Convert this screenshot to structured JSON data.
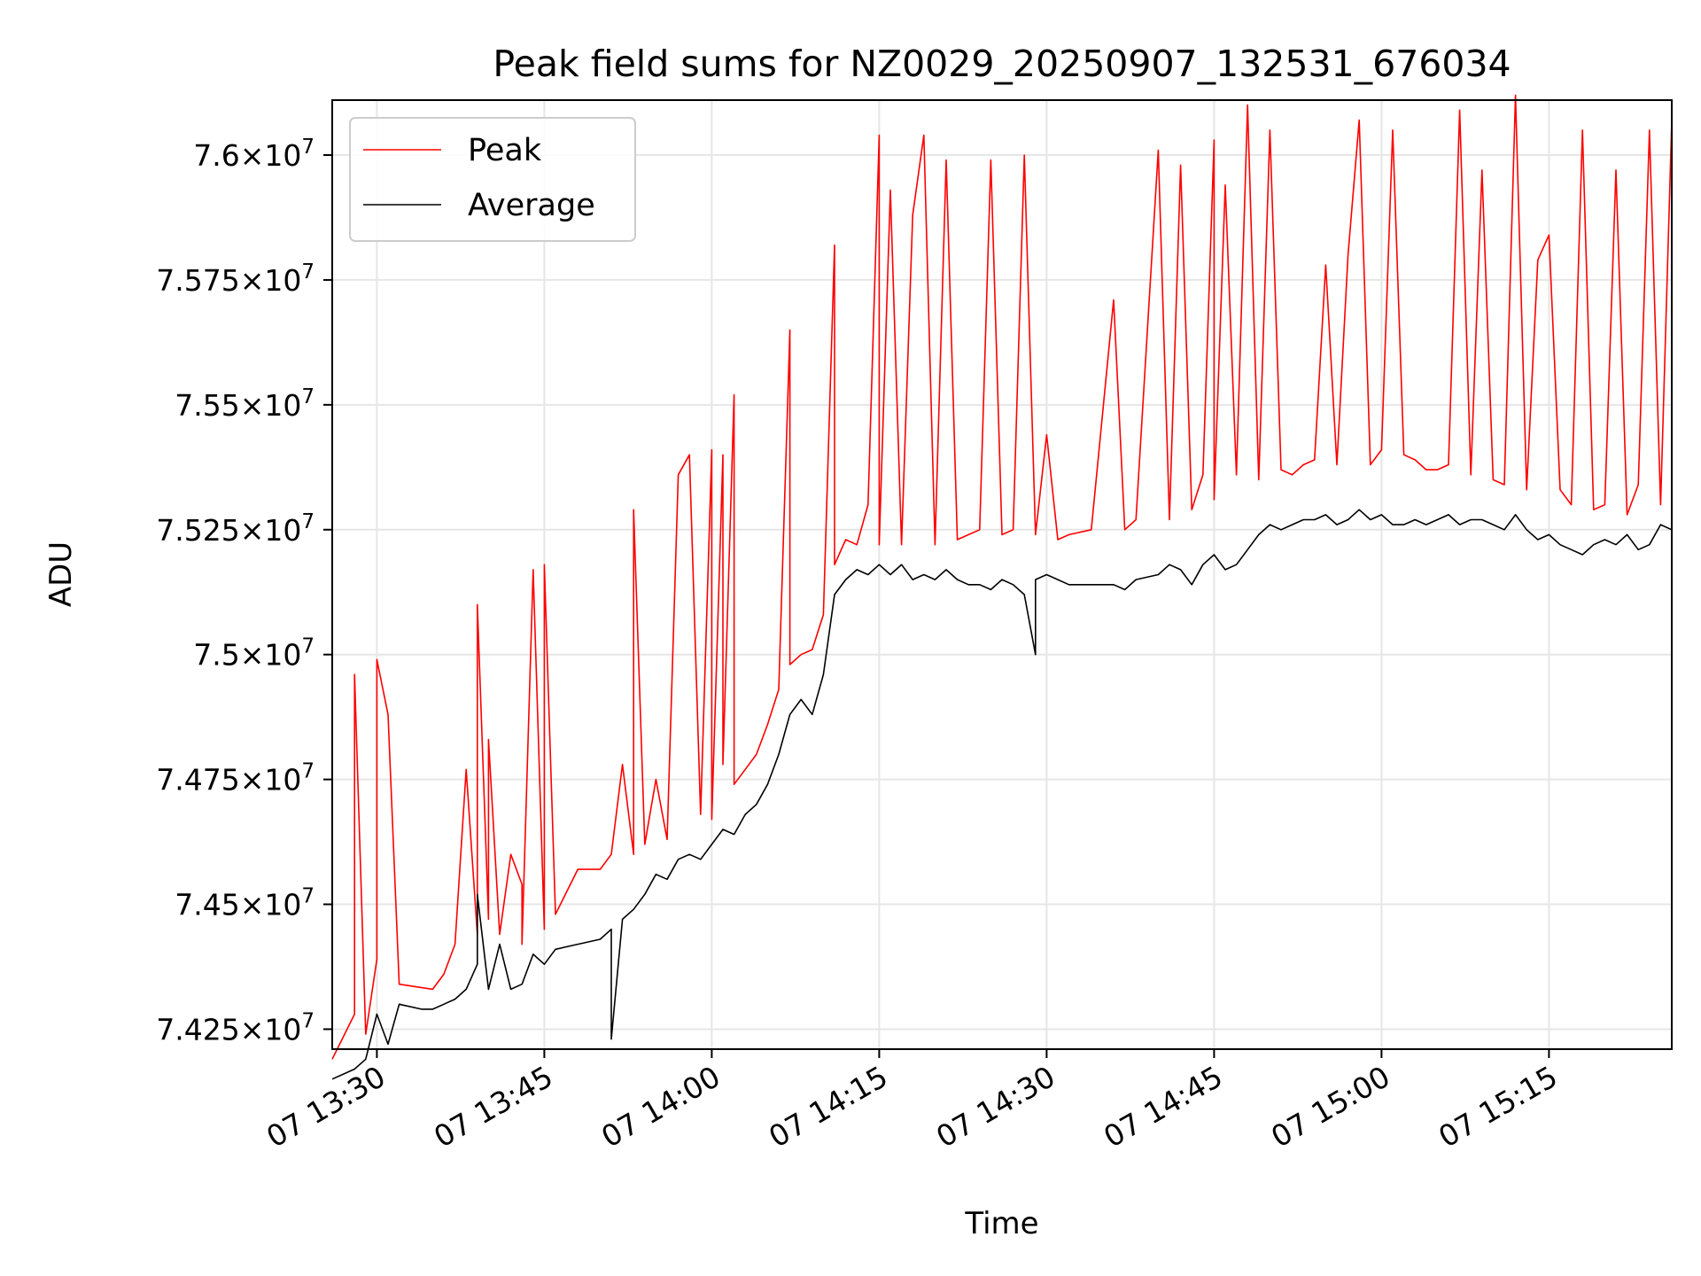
{
  "chart_data": {
    "type": "line",
    "title": "Peak field sums for NZ0029_20250907_132531_676034",
    "xlabel": "Time",
    "ylabel": "ADU",
    "x_start": "07 13:26",
    "x_end": "07 15:26",
    "ylim": [
      74210000,
      76110000
    ],
    "x_ticks": [
      {
        "x": "07 13:30",
        "label": "07 13:30"
      },
      {
        "x": "07 13:45",
        "label": "07 13:45"
      },
      {
        "x": "07 14:00",
        "label": "07 14:00"
      },
      {
        "x": "07 14:15",
        "label": "07 14:15"
      },
      {
        "x": "07 14:30",
        "label": "07 14:30"
      },
      {
        "x": "07 14:45",
        "label": "07 14:45"
      },
      {
        "x": "07 15:00",
        "label": "07 15:00"
      },
      {
        "x": "07 15:15",
        "label": "07 15:15"
      }
    ],
    "y_ticks": [
      {
        "value": 74250000,
        "mantissa": "7.425",
        "exp": "7"
      },
      {
        "value": 74500000,
        "mantissa": "7.45",
        "exp": "7"
      },
      {
        "value": 74750000,
        "mantissa": "7.475",
        "exp": "7"
      },
      {
        "value": 75000000,
        "mantissa": "7.5",
        "exp": "7"
      },
      {
        "value": 75250000,
        "mantissa": "7.525",
        "exp": "7"
      },
      {
        "value": 75500000,
        "mantissa": "7.55",
        "exp": "7"
      },
      {
        "value": 75750000,
        "mantissa": "7.575",
        "exp": "7"
      },
      {
        "value": 76000000,
        "mantissa": "7.6",
        "exp": "7"
      }
    ],
    "grid": true,
    "legend_position": "top-left",
    "series": [
      {
        "name": "Peak",
        "color": "#ff0000",
        "points": [
          [
            "07 13:26",
            74190000
          ],
          [
            "07 13:28",
            74280000
          ],
          [
            "07 13:28",
            74960000
          ],
          [
            "07 13:29",
            74240000
          ],
          [
            "07 13:30",
            74390000
          ],
          [
            "07 13:30",
            74990000
          ],
          [
            "07 13:31",
            74880000
          ],
          [
            "07 13:32",
            74340000
          ],
          [
            "07 13:35",
            74330000
          ],
          [
            "07 13:36",
            74360000
          ],
          [
            "07 13:37",
            74420000
          ],
          [
            "07 13:38",
            74770000
          ],
          [
            "07 13:39",
            74440000
          ],
          [
            "07 13:39",
            75100000
          ],
          [
            "07 13:40",
            74470000
          ],
          [
            "07 13:40",
            74830000
          ],
          [
            "07 13:41",
            74440000
          ],
          [
            "07 13:42",
            74600000
          ],
          [
            "07 13:43",
            74540000
          ],
          [
            "07 13:43",
            74420000
          ],
          [
            "07 13:44",
            75170000
          ],
          [
            "07 13:45",
            74450000
          ],
          [
            "07 13:45",
            75180000
          ],
          [
            "07 13:46",
            74480000
          ],
          [
            "07 13:48",
            74570000
          ],
          [
            "07 13:50",
            74570000
          ],
          [
            "07 13:51",
            74600000
          ],
          [
            "07 13:52",
            74780000
          ],
          [
            "07 13:53",
            74600000
          ],
          [
            "07 13:53",
            75290000
          ],
          [
            "07 13:54",
            74620000
          ],
          [
            "07 13:55",
            74750000
          ],
          [
            "07 13:56",
            74630000
          ],
          [
            "07 13:57",
            75360000
          ],
          [
            "07 13:58",
            75400000
          ],
          [
            "07 13:59",
            74680000
          ],
          [
            "07 14:00",
            75410000
          ],
          [
            "07 14:00",
            74670000
          ],
          [
            "07 14:01",
            75400000
          ],
          [
            "07 14:01",
            74780000
          ],
          [
            "07 14:02",
            75520000
          ],
          [
            "07 14:02",
            74740000
          ],
          [
            "07 14:03",
            74770000
          ],
          [
            "07 14:04",
            74800000
          ],
          [
            "07 14:05",
            74860000
          ],
          [
            "07 14:06",
            74930000
          ],
          [
            "07 14:07",
            75650000
          ],
          [
            "07 14:07",
            74980000
          ],
          [
            "07 14:08",
            75000000
          ],
          [
            "07 14:09",
            75010000
          ],
          [
            "07 14:10",
            75080000
          ],
          [
            "07 14:11",
            75820000
          ],
          [
            "07 14:11",
            75180000
          ],
          [
            "07 14:12",
            75230000
          ],
          [
            "07 14:13",
            75220000
          ],
          [
            "07 14:14",
            75300000
          ],
          [
            "07 14:15",
            76040000
          ],
          [
            "07 14:15",
            75220000
          ],
          [
            "07 14:16",
            75930000
          ],
          [
            "07 14:17",
            75220000
          ],
          [
            "07 14:18",
            75880000
          ],
          [
            "07 14:19",
            76040000
          ],
          [
            "07 14:20",
            75220000
          ],
          [
            "07 14:21",
            75990000
          ],
          [
            "07 14:22",
            75230000
          ],
          [
            "07 14:23",
            75240000
          ],
          [
            "07 14:24",
            75250000
          ],
          [
            "07 14:25",
            75990000
          ],
          [
            "07 14:26",
            75240000
          ],
          [
            "07 14:27",
            75250000
          ],
          [
            "07 14:28",
            76000000
          ],
          [
            "07 14:29",
            75240000
          ],
          [
            "07 14:30",
            75440000
          ],
          [
            "07 14:31",
            75230000
          ],
          [
            "07 14:32",
            75240000
          ],
          [
            "07 14:34",
            75250000
          ],
          [
            "07 14:36",
            75710000
          ],
          [
            "07 14:37",
            75250000
          ],
          [
            "07 14:38",
            75270000
          ],
          [
            "07 14:40",
            76010000
          ],
          [
            "07 14:41",
            75270000
          ],
          [
            "07 14:42",
            75980000
          ],
          [
            "07 14:43",
            75290000
          ],
          [
            "07 14:44",
            75360000
          ],
          [
            "07 14:45",
            76030000
          ],
          [
            "07 14:45",
            75310000
          ],
          [
            "07 14:46",
            75940000
          ],
          [
            "07 14:47",
            75360000
          ],
          [
            "07 14:48",
            76100000
          ],
          [
            "07 14:49",
            75350000
          ],
          [
            "07 14:50",
            76050000
          ],
          [
            "07 14:51",
            75370000
          ],
          [
            "07 14:52",
            75360000
          ],
          [
            "07 14:53",
            75380000
          ],
          [
            "07 14:54",
            75390000
          ],
          [
            "07 14:55",
            75780000
          ],
          [
            "07 14:56",
            75380000
          ],
          [
            "07 14:57",
            75800000
          ],
          [
            "07 14:58",
            76070000
          ],
          [
            "07 14:59",
            75380000
          ],
          [
            "07 15:00",
            75410000
          ],
          [
            "07 15:01",
            76050000
          ],
          [
            "07 15:02",
            75400000
          ],
          [
            "07 15:03",
            75390000
          ],
          [
            "07 15:04",
            75370000
          ],
          [
            "07 15:05",
            75370000
          ],
          [
            "07 15:06",
            75380000
          ],
          [
            "07 15:07",
            76090000
          ],
          [
            "07 15:08",
            75360000
          ],
          [
            "07 15:09",
            75970000
          ],
          [
            "07 15:10",
            75350000
          ],
          [
            "07 15:11",
            75340000
          ],
          [
            "07 15:12",
            76120000
          ],
          [
            "07 15:13",
            75330000
          ],
          [
            "07 15:14",
            75790000
          ],
          [
            "07 15:15",
            75840000
          ],
          [
            "07 15:16",
            75330000
          ],
          [
            "07 15:17",
            75300000
          ],
          [
            "07 15:18",
            76050000
          ],
          [
            "07 15:19",
            75290000
          ],
          [
            "07 15:20",
            75300000
          ],
          [
            "07 15:21",
            75970000
          ],
          [
            "07 15:22",
            75280000
          ],
          [
            "07 15:23",
            75340000
          ],
          [
            "07 15:24",
            76050000
          ],
          [
            "07 15:25",
            75300000
          ],
          [
            "07 15:26",
            76070000
          ]
        ]
      },
      {
        "name": "Average",
        "color": "#000000",
        "points": [
          [
            "07 13:26",
            74150000
          ],
          [
            "07 13:28",
            74170000
          ],
          [
            "07 13:29",
            74190000
          ],
          [
            "07 13:30",
            74280000
          ],
          [
            "07 13:31",
            74220000
          ],
          [
            "07 13:32",
            74300000
          ],
          [
            "07 13:34",
            74290000
          ],
          [
            "07 13:35",
            74290000
          ],
          [
            "07 13:36",
            74300000
          ],
          [
            "07 13:37",
            74310000
          ],
          [
            "07 13:38",
            74330000
          ],
          [
            "07 13:39",
            74380000
          ],
          [
            "07 13:39",
            74520000
          ],
          [
            "07 13:40",
            74330000
          ],
          [
            "07 13:41",
            74420000
          ],
          [
            "07 13:42",
            74330000
          ],
          [
            "07 13:43",
            74340000
          ],
          [
            "07 13:44",
            74400000
          ],
          [
            "07 13:45",
            74380000
          ],
          [
            "07 13:46",
            74410000
          ],
          [
            "07 13:48",
            74420000
          ],
          [
            "07 13:50",
            74430000
          ],
          [
            "07 13:51",
            74450000
          ],
          [
            "07 13:51",
            74230000
          ],
          [
            "07 13:52",
            74470000
          ],
          [
            "07 13:53",
            74490000
          ],
          [
            "07 13:54",
            74520000
          ],
          [
            "07 13:55",
            74560000
          ],
          [
            "07 13:56",
            74550000
          ],
          [
            "07 13:57",
            74590000
          ],
          [
            "07 13:58",
            74600000
          ],
          [
            "07 13:59",
            74590000
          ],
          [
            "07 14:00",
            74620000
          ],
          [
            "07 14:01",
            74650000
          ],
          [
            "07 14:02",
            74640000
          ],
          [
            "07 14:03",
            74680000
          ],
          [
            "07 14:04",
            74700000
          ],
          [
            "07 14:05",
            74740000
          ],
          [
            "07 14:06",
            74800000
          ],
          [
            "07 14:07",
            74880000
          ],
          [
            "07 14:08",
            74910000
          ],
          [
            "07 14:09",
            74880000
          ],
          [
            "07 14:10",
            74960000
          ],
          [
            "07 14:11",
            75120000
          ],
          [
            "07 14:12",
            75150000
          ],
          [
            "07 14:13",
            75170000
          ],
          [
            "07 14:14",
            75160000
          ],
          [
            "07 14:15",
            75180000
          ],
          [
            "07 14:16",
            75160000
          ],
          [
            "07 14:17",
            75180000
          ],
          [
            "07 14:18",
            75150000
          ],
          [
            "07 14:19",
            75160000
          ],
          [
            "07 14:20",
            75150000
          ],
          [
            "07 14:21",
            75170000
          ],
          [
            "07 14:22",
            75150000
          ],
          [
            "07 14:23",
            75140000
          ],
          [
            "07 14:24",
            75140000
          ],
          [
            "07 14:25",
            75130000
          ],
          [
            "07 14:26",
            75150000
          ],
          [
            "07 14:27",
            75140000
          ],
          [
            "07 14:28",
            75120000
          ],
          [
            "07 14:29",
            75000000
          ],
          [
            "07 14:29",
            75150000
          ],
          [
            "07 14:30",
            75160000
          ],
          [
            "07 14:31",
            75150000
          ],
          [
            "07 14:32",
            75140000
          ],
          [
            "07 14:34",
            75140000
          ],
          [
            "07 14:36",
            75140000
          ],
          [
            "07 14:37",
            75130000
          ],
          [
            "07 14:38",
            75150000
          ],
          [
            "07 14:40",
            75160000
          ],
          [
            "07 14:41",
            75180000
          ],
          [
            "07 14:42",
            75170000
          ],
          [
            "07 14:43",
            75140000
          ],
          [
            "07 14:44",
            75180000
          ],
          [
            "07 14:45",
            75200000
          ],
          [
            "07 14:46",
            75170000
          ],
          [
            "07 14:47",
            75180000
          ],
          [
            "07 14:48",
            75210000
          ],
          [
            "07 14:49",
            75240000
          ],
          [
            "07 14:50",
            75260000
          ],
          [
            "07 14:51",
            75250000
          ],
          [
            "07 14:52",
            75260000
          ],
          [
            "07 14:53",
            75270000
          ],
          [
            "07 14:54",
            75270000
          ],
          [
            "07 14:55",
            75280000
          ],
          [
            "07 14:56",
            75260000
          ],
          [
            "07 14:57",
            75270000
          ],
          [
            "07 14:58",
            75290000
          ],
          [
            "07 14:59",
            75270000
          ],
          [
            "07 15:00",
            75280000
          ],
          [
            "07 15:01",
            75260000
          ],
          [
            "07 15:02",
            75260000
          ],
          [
            "07 15:03",
            75270000
          ],
          [
            "07 15:04",
            75260000
          ],
          [
            "07 15:05",
            75270000
          ],
          [
            "07 15:06",
            75280000
          ],
          [
            "07 15:07",
            75260000
          ],
          [
            "07 15:08",
            75270000
          ],
          [
            "07 15:09",
            75270000
          ],
          [
            "07 15:10",
            75260000
          ],
          [
            "07 15:11",
            75250000
          ],
          [
            "07 15:12",
            75280000
          ],
          [
            "07 15:13",
            75250000
          ],
          [
            "07 15:14",
            75230000
          ],
          [
            "07 15:15",
            75240000
          ],
          [
            "07 15:16",
            75220000
          ],
          [
            "07 15:17",
            75210000
          ],
          [
            "07 15:18",
            75200000
          ],
          [
            "07 15:19",
            75220000
          ],
          [
            "07 15:20",
            75230000
          ],
          [
            "07 15:21",
            75220000
          ],
          [
            "07 15:22",
            75240000
          ],
          [
            "07 15:23",
            75210000
          ],
          [
            "07 15:24",
            75220000
          ],
          [
            "07 15:25",
            75260000
          ],
          [
            "07 15:26",
            75250000
          ]
        ]
      }
    ]
  }
}
